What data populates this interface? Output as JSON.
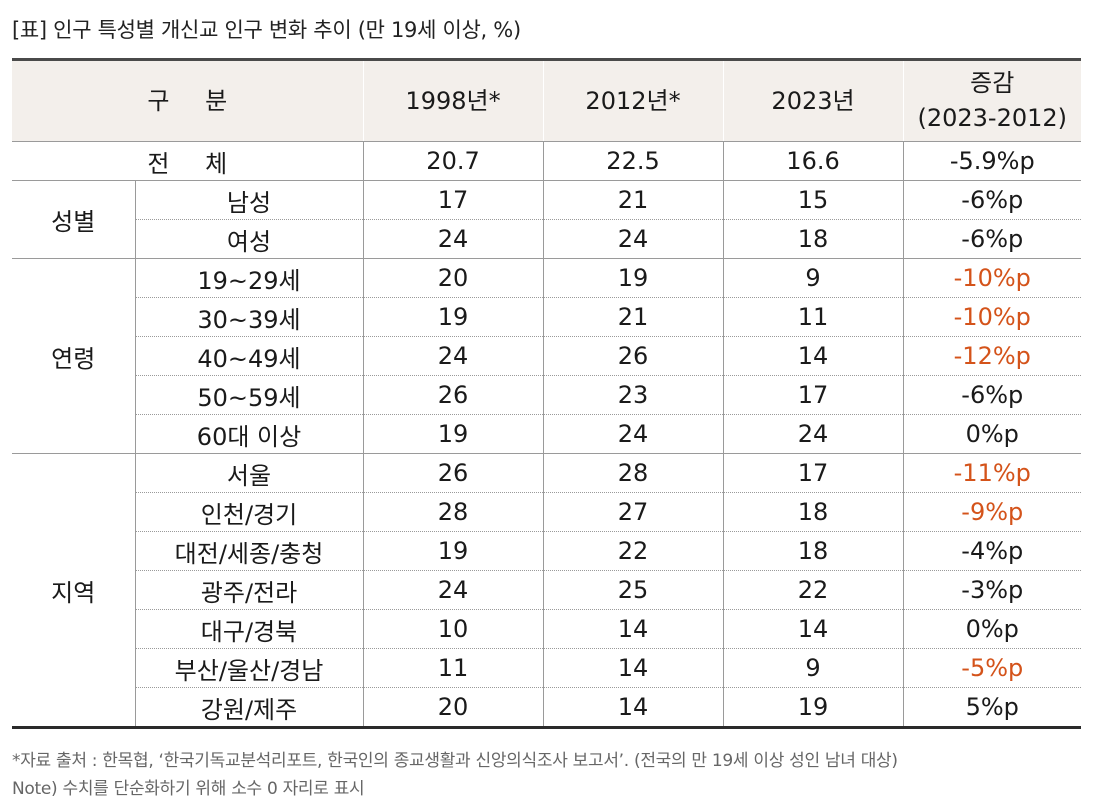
{
  "title": "[표] 인구 특성별 개신교 인구 변화 추이 (만 19세 이상, %)",
  "table": {
    "header": {
      "category": "구 분",
      "col_1998": "1998년*",
      "col_2012": "2012년*",
      "col_2023": "2023년",
      "change_line1": "증감",
      "change_line2": "(2023-2012)"
    },
    "total": {
      "label": "전 체",
      "v1998": "20.7",
      "v2012": "22.5",
      "v2023": "16.6",
      "change": "-5.9%p"
    },
    "groups": [
      {
        "name": "성별",
        "rows": [
          {
            "label": "남성",
            "v1998": "17",
            "v2012": "21",
            "v2023": "15",
            "change": "-6%p",
            "highlight": false
          },
          {
            "label": "여성",
            "v1998": "24",
            "v2012": "24",
            "v2023": "18",
            "change": "-6%p",
            "highlight": false
          }
        ]
      },
      {
        "name": "연령",
        "rows": [
          {
            "label": "19~29세",
            "v1998": "20",
            "v2012": "19",
            "v2023": "9",
            "change": "-10%p",
            "highlight": true
          },
          {
            "label": "30~39세",
            "v1998": "19",
            "v2012": "21",
            "v2023": "11",
            "change": "-10%p",
            "highlight": true
          },
          {
            "label": "40~49세",
            "v1998": "24",
            "v2012": "26",
            "v2023": "14",
            "change": "-12%p",
            "highlight": true
          },
          {
            "label": "50~59세",
            "v1998": "26",
            "v2012": "23",
            "v2023": "17",
            "change": "-6%p",
            "highlight": false
          },
          {
            "label": "60대 이상",
            "v1998": "19",
            "v2012": "24",
            "v2023": "24",
            "change": "0%p",
            "highlight": false
          }
        ]
      },
      {
        "name": "지역",
        "rows": [
          {
            "label": "서울",
            "v1998": "26",
            "v2012": "28",
            "v2023": "17",
            "change": "-11%p",
            "highlight": true
          },
          {
            "label": "인천/경기",
            "v1998": "28",
            "v2012": "27",
            "v2023": "18",
            "change": "-9%p",
            "highlight": true
          },
          {
            "label": "대전/세종/충청",
            "v1998": "19",
            "v2012": "22",
            "v2023": "18",
            "change": "-4%p",
            "highlight": false
          },
          {
            "label": "광주/전라",
            "v1998": "24",
            "v2012": "25",
            "v2023": "22",
            "change": "-3%p",
            "highlight": false
          },
          {
            "label": "대구/경북",
            "v1998": "10",
            "v2012": "14",
            "v2023": "14",
            "change": "0%p",
            "highlight": false
          },
          {
            "label": "부산/울산/경남",
            "v1998": "11",
            "v2012": "14",
            "v2023": "9",
            "change": "-5%p",
            "highlight": true
          },
          {
            "label": "강원/제주",
            "v1998": "20",
            "v2012": "14",
            "v2023": "19",
            "change": "5%p",
            "highlight": false
          }
        ]
      }
    ]
  },
  "footnotes": [
    "*자료 출처 : 한목협, ‘한국기독교분석리포트, 한국인의 종교생활과 신앙의식조사 보고서’. (전국의 만 19세 이상 성인 남녀 대상)",
    "Note) 수치를 단순화하기 위해 소수 0 자리로 표시"
  ],
  "colors": {
    "header_bg": "#f3efeb",
    "highlight_text": "#d4531a",
    "text": "#1a1a1a",
    "footnote_text": "#666666"
  }
}
